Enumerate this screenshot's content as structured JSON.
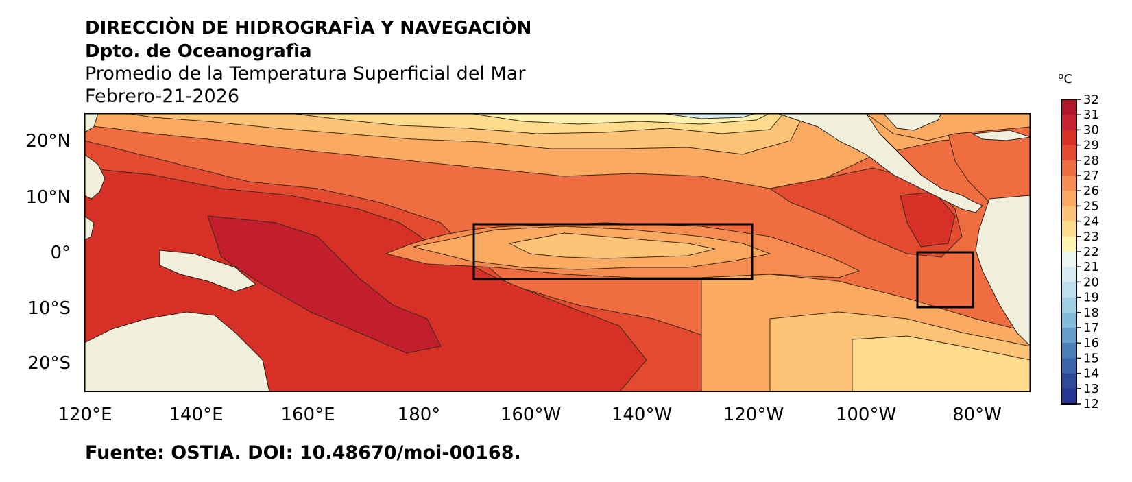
{
  "header": {
    "line1": "DIRECCIÒN DE HIDROGRAFÌA Y NAVEGACIÒN",
    "line2": "Dpto. de Oceanografìa",
    "line3": "Promedio de la Temperatura Superficial del Mar",
    "line4": "Febrero-21-2026"
  },
  "source": "Fuente: OSTIA. DOI: 10.48670/moi-00168.",
  "map": {
    "lat_labels": [
      "20°N",
      "10°N",
      "0°",
      "10°S",
      "20°S"
    ],
    "lon_labels": [
      "120°E",
      "140°E",
      "160°E",
      "180°",
      "160°W",
      "140°W",
      "120°W",
      "100°W",
      "80°W"
    ],
    "land_color": "#efefdb",
    "boxes": [
      {
        "label": "",
        "lon_range": [
          "170°W",
          "120°W"
        ],
        "lat_range": [
          "5°N",
          "5°S"
        ]
      },
      {
        "label": "",
        "lon_range": [
          "90°W",
          "80°W"
        ],
        "lat_range": [
          "0°",
          "10°S"
        ]
      }
    ]
  },
  "colorbar": {
    "unit": "ºC",
    "ticks": [
      "32",
      "31",
      "30",
      "29",
      "28",
      "27",
      "26",
      "25",
      "24",
      "23",
      "22",
      "21",
      "20",
      "19",
      "18",
      "17",
      "16",
      "15",
      "14",
      "13",
      "12"
    ],
    "colors": [
      "#b2182b",
      "#c72230",
      "#d63027",
      "#e34b30",
      "#f06d42",
      "#f68c4f",
      "#fbaa61",
      "#fdc478",
      "#fedc8e",
      "#fef3b0",
      "#ecf6f0",
      "#d6ecf2",
      "#bde0ee",
      "#a1d0e6",
      "#83bbdb",
      "#659dcb",
      "#4a7fb9",
      "#3a64aa",
      "#2f4a9b",
      "#283793"
    ]
  }
}
